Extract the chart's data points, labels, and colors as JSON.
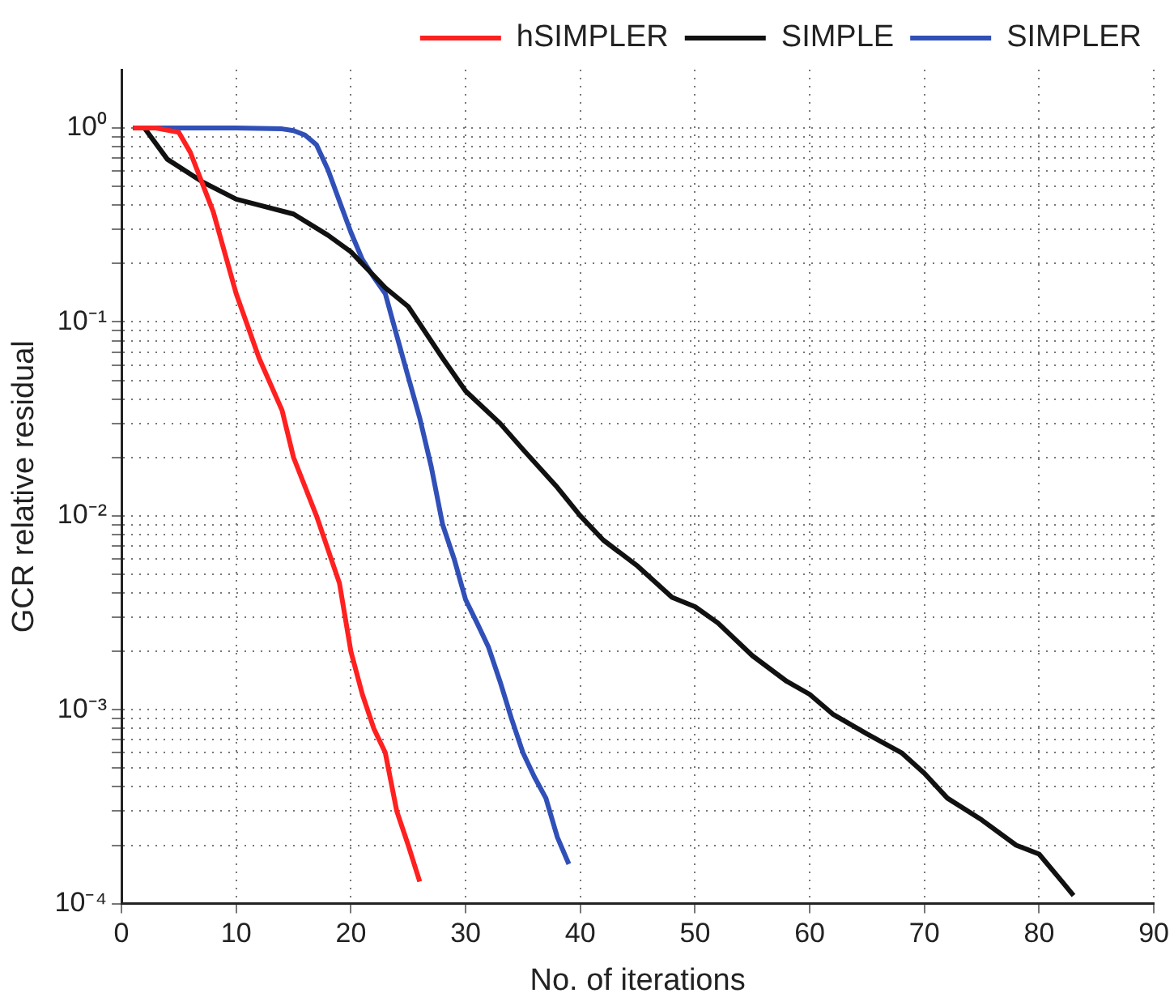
{
  "chart_data": {
    "type": "line",
    "xlabel": "No. of iterations",
    "ylabel": "GCR relative residual",
    "log": "y",
    "grid": true,
    "legend": "top right",
    "line_style": "solid",
    "marker": "none",
    "xlim": [
      0,
      90
    ],
    "xticks": [
      0,
      10,
      20,
      30,
      40,
      50,
      60,
      70,
      80,
      90
    ],
    "ylim": [
      0.0001,
      2
    ],
    "yticks": [
      {
        "value": 0.0001,
        "label": "10⁻⁴"
      },
      {
        "value": 0.0002,
        "label": null
      },
      {
        "value": 0.0003,
        "label": null
      },
      {
        "value": 0.0004,
        "label": null
      },
      {
        "value": 0.0005,
        "label": null
      },
      {
        "value": 0.0006,
        "label": null
      },
      {
        "value": 0.0007,
        "label": null
      },
      {
        "value": 0.0008,
        "label": null
      },
      {
        "value": 0.0009,
        "label": null
      },
      {
        "value": 0.001,
        "label": "10⁻³"
      },
      {
        "value": 0.002,
        "label": null
      },
      {
        "value": 0.003,
        "label": null
      },
      {
        "value": 0.004,
        "label": null
      },
      {
        "value": 0.005,
        "label": null
      },
      {
        "value": 0.006,
        "label": null
      },
      {
        "value": 0.007,
        "label": null
      },
      {
        "value": 0.008,
        "label": null
      },
      {
        "value": 0.009,
        "label": null
      },
      {
        "value": 0.01,
        "label": "10⁻²"
      },
      {
        "value": 0.02,
        "label": null
      },
      {
        "value": 0.03,
        "label": null
      },
      {
        "value": 0.04,
        "label": null
      },
      {
        "value": 0.05,
        "label": null
      },
      {
        "value": 0.06,
        "label": null
      },
      {
        "value": 0.07,
        "label": null
      },
      {
        "value": 0.08,
        "label": null
      },
      {
        "value": 0.09,
        "label": null
      },
      {
        "value": 0.1,
        "label": "10⁻¹"
      },
      {
        "value": 0.2,
        "label": null
      },
      {
        "value": 0.3,
        "label": null
      },
      {
        "value": 0.4,
        "label": null
      },
      {
        "value": 0.5,
        "label": null
      },
      {
        "value": 0.6,
        "label": null
      },
      {
        "value": 0.7,
        "label": null
      },
      {
        "value": 0.8,
        "label": null
      },
      {
        "value": 0.9,
        "label": null
      },
      {
        "value": 1,
        "label": "10⁰"
      }
    ],
    "series": [
      {
        "name": "hSIMPLER",
        "color": "#ff2020",
        "x": [
          1,
          3,
          5,
          6,
          8,
          10,
          12,
          14,
          15,
          17,
          19,
          20,
          21,
          22,
          23,
          24,
          25,
          26
        ],
        "values": [
          1,
          1,
          0.95,
          0.75,
          0.37,
          0.14,
          0.065,
          0.035,
          0.02,
          0.01,
          0.0045,
          0.002,
          0.0012,
          0.0008,
          0.0006,
          0.0003,
          0.0002,
          0.00013
        ]
      },
      {
        "name": "SIMPLE",
        "color": "#111111",
        "x": [
          1,
          2,
          4,
          7,
          10,
          15,
          18,
          20,
          23,
          25,
          28,
          30,
          33,
          35,
          38,
          40,
          42,
          45,
          48,
          50,
          52,
          55,
          58,
          60,
          62,
          65,
          68,
          70,
          72,
          75,
          78,
          80,
          82,
          83
        ],
        "values": [
          1,
          1,
          0.69,
          0.53,
          0.43,
          0.36,
          0.28,
          0.23,
          0.15,
          0.12,
          0.065,
          0.044,
          0.03,
          0.022,
          0.014,
          0.01,
          0.0075,
          0.0055,
          0.0038,
          0.0034,
          0.0028,
          0.0019,
          0.0014,
          0.0012,
          0.00095,
          0.00075,
          0.0006,
          0.00047,
          0.00035,
          0.00027,
          0.0002,
          0.00018,
          0.00013,
          0.00011
        ]
      },
      {
        "name": "SIMPLER",
        "color": "#3050b8",
        "x": [
          1,
          5,
          10,
          14,
          15,
          16,
          17,
          18,
          19,
          20,
          21,
          22,
          23,
          24,
          25,
          26,
          27,
          28,
          29,
          30,
          31,
          32,
          33,
          34,
          35,
          36,
          37,
          38,
          39
        ],
        "values": [
          1,
          1,
          1,
          0.99,
          0.97,
          0.92,
          0.82,
          0.61,
          0.42,
          0.29,
          0.21,
          0.17,
          0.14,
          0.085,
          0.052,
          0.032,
          0.018,
          0.009,
          0.006,
          0.0037,
          0.0028,
          0.0021,
          0.0014,
          0.0009,
          0.0006,
          0.00045,
          0.00035,
          0.00022,
          0.00016
        ]
      }
    ]
  }
}
